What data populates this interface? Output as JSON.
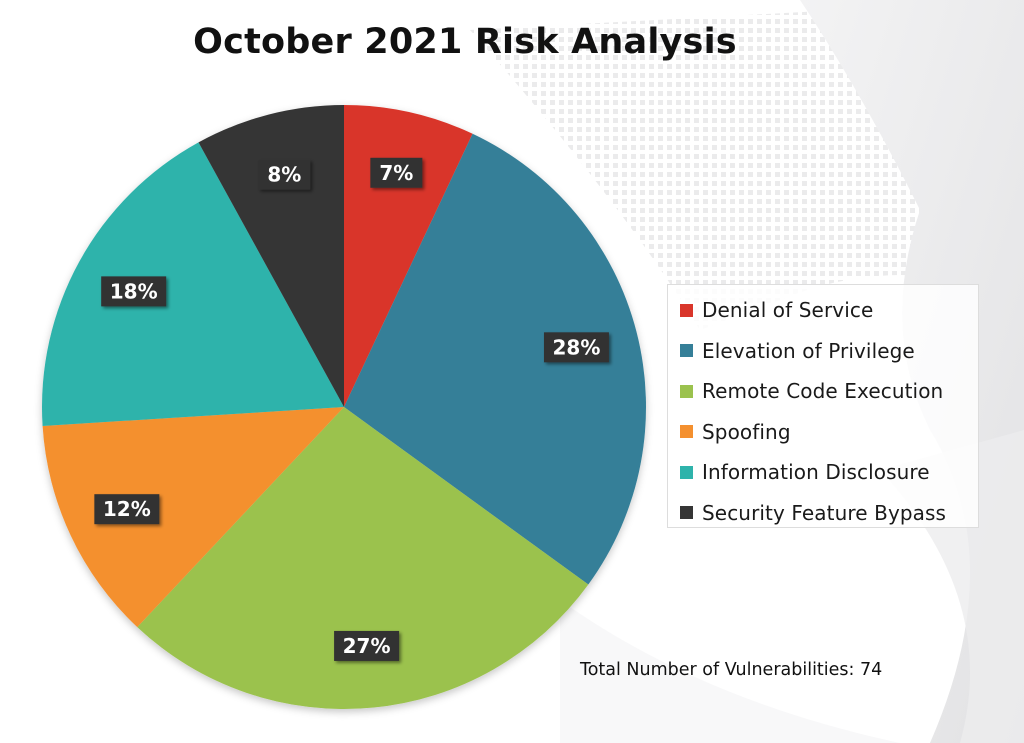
{
  "chart_data": {
    "type": "pie",
    "title": "October 2021 Risk Analysis",
    "slices": [
      {
        "label": "Denial of Service",
        "value": 7,
        "display": "7%",
        "color": "#d9352a"
      },
      {
        "label": "Elevation of Privilege",
        "value": 28,
        "display": "28%",
        "color": "#357f98"
      },
      {
        "label": "Remote Code Execution",
        "value": 27,
        "display": "27%",
        "color": "#9bc24e"
      },
      {
        "label": "Spoofing",
        "value": 12,
        "display": "12%",
        "color": "#f4902f"
      },
      {
        "label": "Information Disclosure",
        "value": 18,
        "display": "18%",
        "color": "#2eb3ab"
      },
      {
        "label": "Security Feature Bypass",
        "value": 8,
        "display": "8%",
        "color": "#353535"
      }
    ],
    "legend_position": "right",
    "annotation": "Total Number of Vulnerabilities: 74"
  },
  "colors": {
    "label_box": "#333333",
    "label_text": "#ffffff"
  }
}
